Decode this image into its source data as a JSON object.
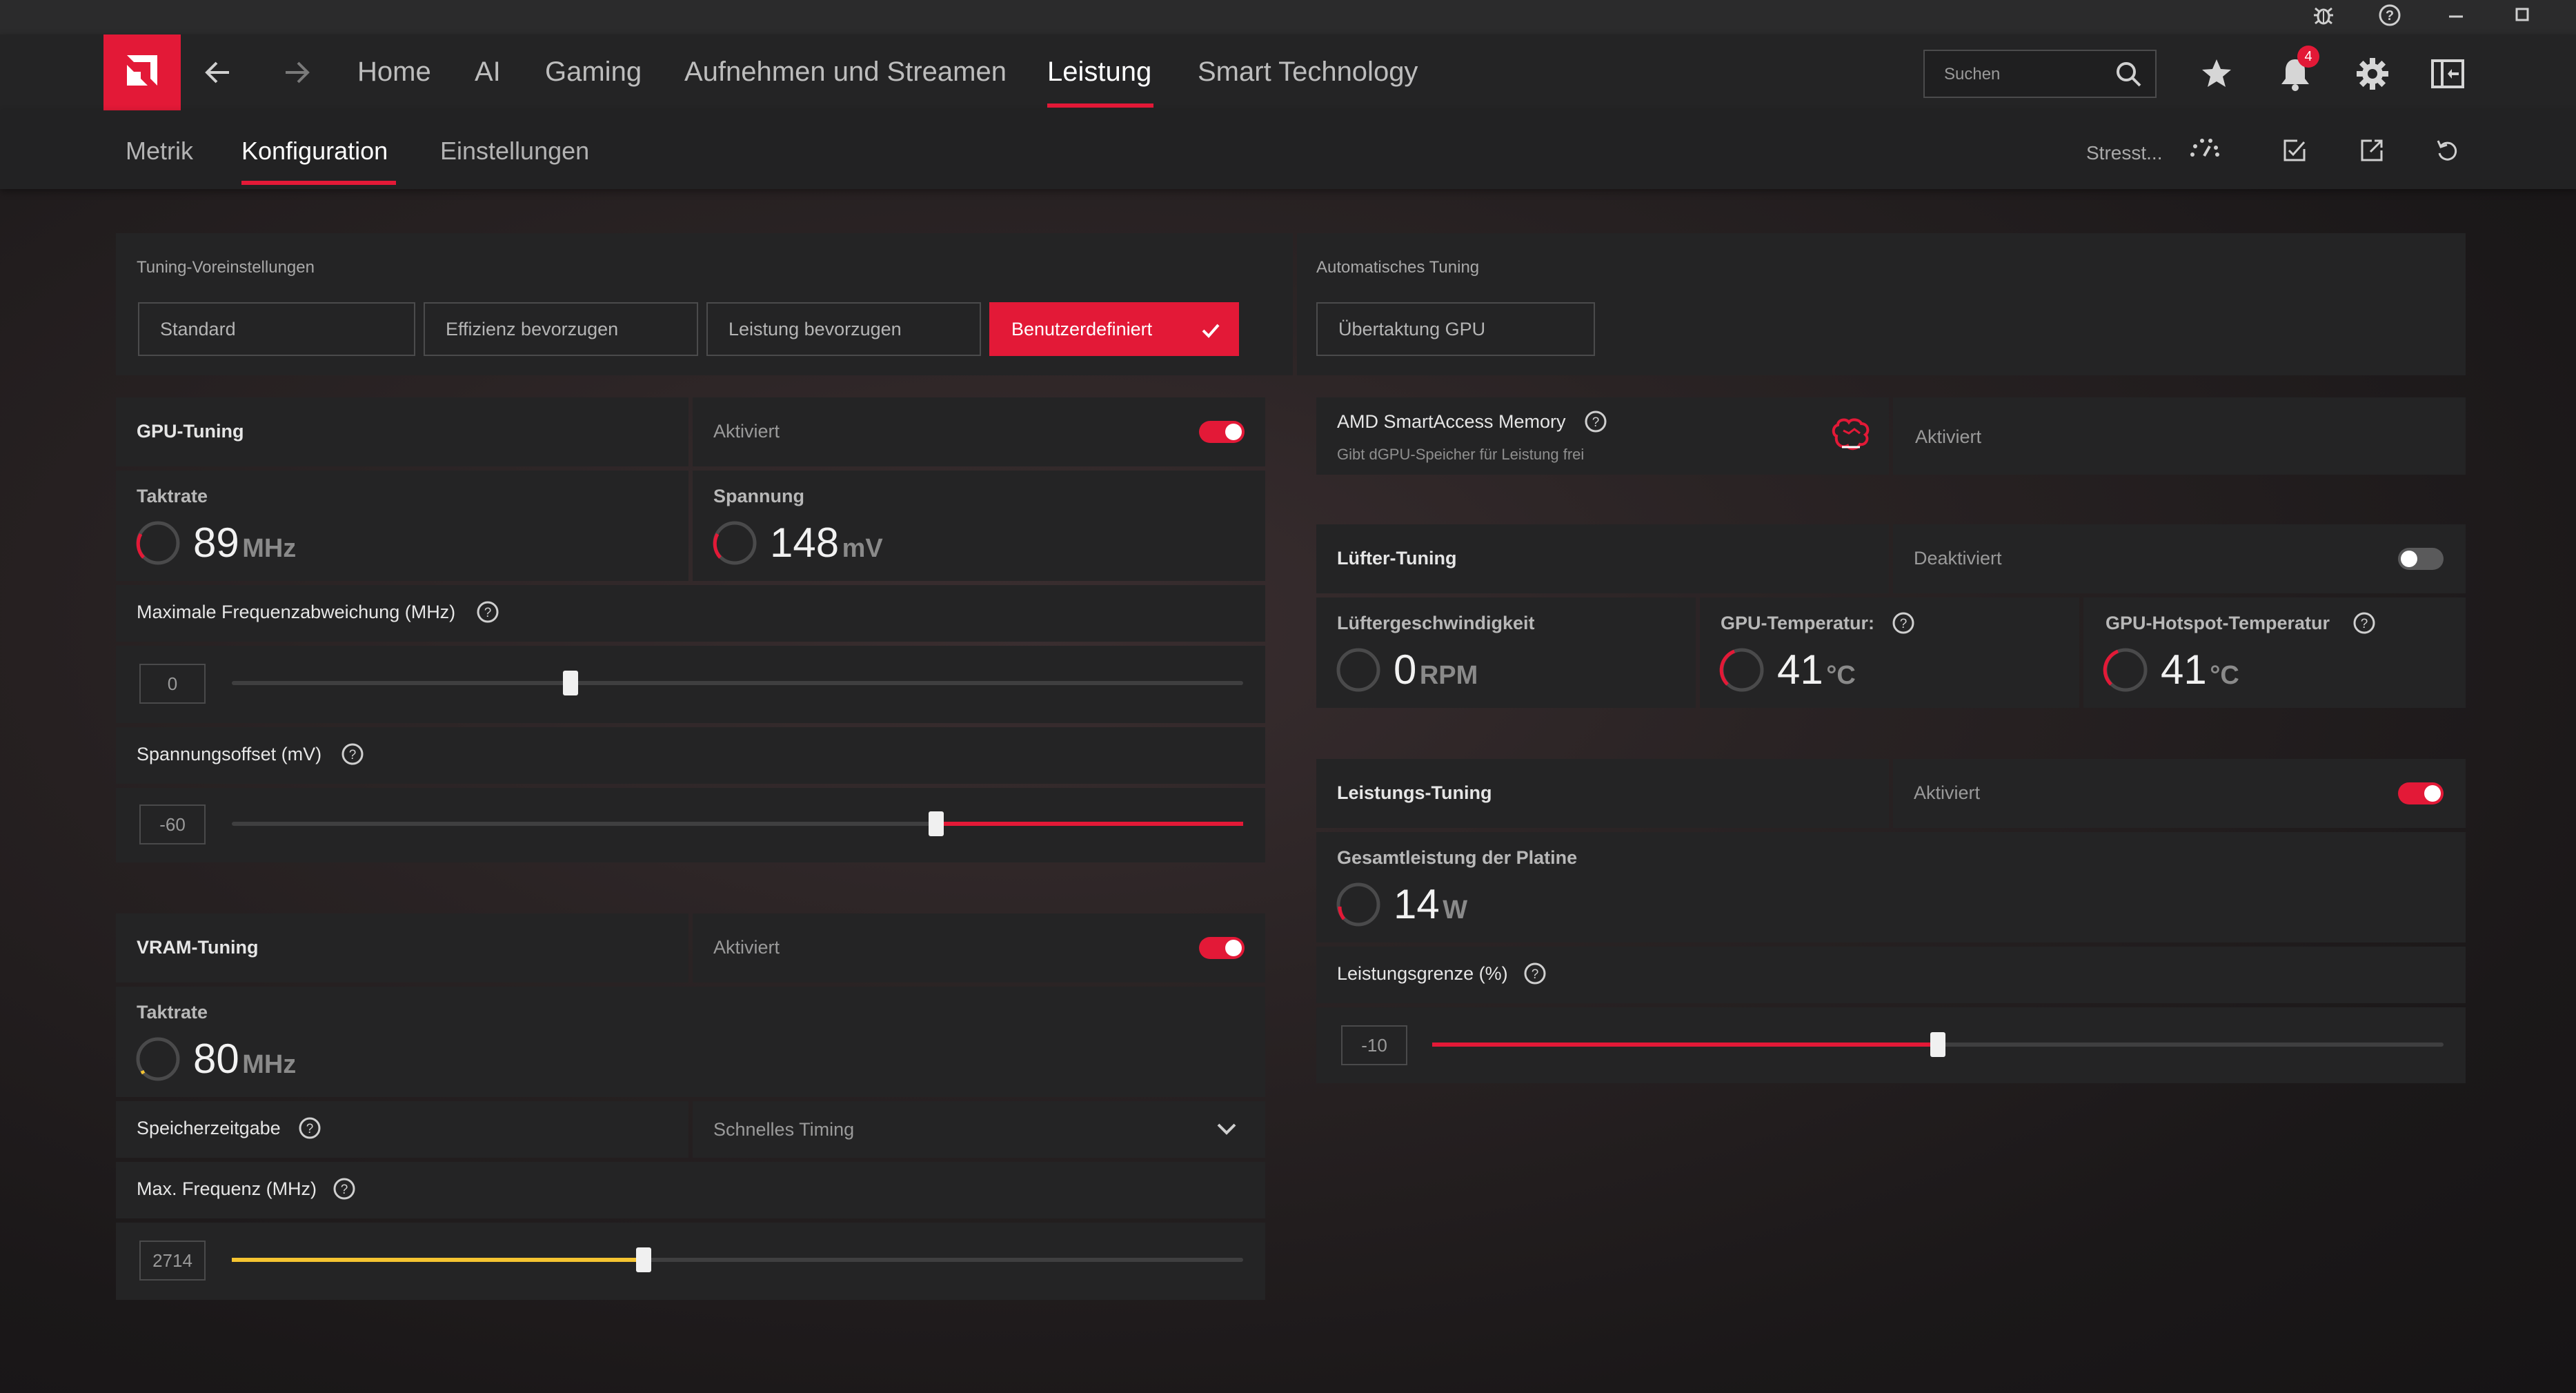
{
  "titlebar": {},
  "topnav": {
    "items": [
      "Home",
      "AI",
      "Gaming",
      "Aufnehmen und Streamen",
      "Leistung",
      "Smart Technology"
    ],
    "search_placeholder": "Suchen",
    "notification_count": "4",
    "accent_color": "#e31937"
  },
  "subnav": {
    "tabs": [
      "Metrik",
      "Konfiguration",
      "Einstellungen"
    ],
    "stress_label": "Stresst..."
  },
  "presets": {
    "title": "Tuning-Voreinstellungen",
    "buttons": [
      "Standard",
      "Effizienz bevorzugen",
      "Leistung bevorzugen",
      "Benutzerdefiniert"
    ],
    "selected": "Benutzerdefiniert"
  },
  "auto_tuning": {
    "title": "Automatisches Tuning",
    "button": "Übertaktung GPU"
  },
  "gpu_tuning": {
    "title": "GPU-Tuning",
    "status": "Aktiviert",
    "enabled": true,
    "clock": {
      "label": "Taktrate",
      "value": "89",
      "unit": "MHz"
    },
    "voltage": {
      "label": "Spannung",
      "value": "148",
      "unit": "mV"
    },
    "max_freq_offset": {
      "label": "Maximale Frequenzabweichung (MHz)",
      "value": "0",
      "position": 0.34
    },
    "voltage_offset": {
      "label": "Spannungsoffset (mV)",
      "value": "-60",
      "position": 0.697
    }
  },
  "vram_tuning": {
    "title": "VRAM-Tuning",
    "status": "Aktiviert",
    "enabled": true,
    "clock": {
      "label": "Taktrate",
      "value": "80",
      "unit": "MHz"
    },
    "memory_timing": {
      "label": "Speicherzeitgabe",
      "value": "Schnelles Timing"
    },
    "max_freq": {
      "label": "Max. Frequenz (MHz)",
      "value": "2714",
      "position": 0.408,
      "color": "#f5c431"
    }
  },
  "smart_access": {
    "title": "AMD SmartAccess Memory",
    "subtitle": "Gibt dGPU-Speicher für Leistung frei",
    "status": "Aktiviert"
  },
  "fan_tuning": {
    "title": "Lüfter-Tuning",
    "status": "Deaktiviert",
    "enabled": false,
    "fan_speed": {
      "label": "Lüftergeschwindigkeit",
      "value": "0",
      "unit": "RPM"
    },
    "gpu_temp": {
      "label": "GPU-Temperatur:",
      "value": "41",
      "unit": "°C"
    },
    "hotspot_temp": {
      "label": "GPU-Hotspot-Temperatur",
      "value": "41",
      "unit": "°C"
    }
  },
  "power_tuning": {
    "title": "Leistungs-Tuning",
    "status": "Aktiviert",
    "enabled": true,
    "board_power": {
      "label": "Gesamtleistung der Platine",
      "value": "14",
      "unit": "W"
    },
    "power_limit": {
      "label": "Leistungsgrenze (%)",
      "value": "-10",
      "position": 0.5
    }
  }
}
